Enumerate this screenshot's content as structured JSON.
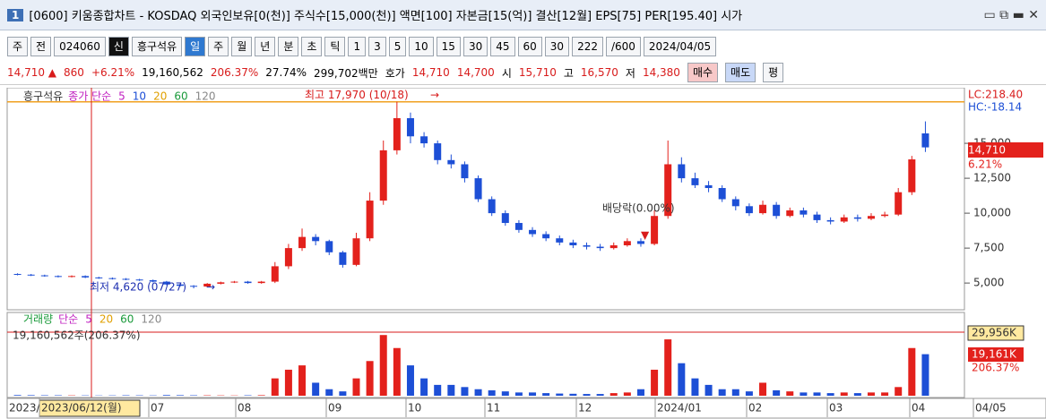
{
  "title_bar": {
    "badge": "1",
    "text": "[0600] 키움종합차트 - KOSDAQ 외국인보유[0(천)] 주식수[15,000(천)] 액면[100] 자본금[15(억)] 결산[12월] EPS[75] PER[195.40] 시가"
  },
  "toolbar": [
    "주",
    "전",
    "024060",
    "신",
    "흥구석유",
    "일",
    "주",
    "월",
    "년",
    "분",
    "초",
    "틱",
    "1",
    "3",
    "5",
    "10",
    "15",
    "30",
    "45",
    "60",
    "30",
    "222",
    "/600",
    "2024/04/05"
  ],
  "quote": [
    "14,710 ▲",
    "860",
    "+6.21%",
    "19,160,562",
    "206.37%",
    "27.74%",
    "299,702백만",
    "호가",
    "14,710",
    "14,700",
    "시",
    "15,710",
    "고",
    "16,570",
    "저",
    "14,380",
    "매수",
    "매도",
    "평"
  ],
  "x_labels": [
    "2023/",
    "2023/06/12(월)",
    "07",
    "08",
    "09",
    "10",
    "11",
    "12",
    "2024/01",
    "02",
    "03",
    "04",
    "04/05"
  ],
  "chart_data": [
    {
      "type": "candlestick",
      "up_color": "#e3211c",
      "down_color": "#1d4fd6",
      "legend": [
        "흥구석유",
        "종가 단순",
        "5",
        "10",
        "20",
        "60",
        "120"
      ],
      "open": [
        5650,
        5600,
        5550,
        5500,
        5450,
        5500,
        5400,
        5350,
        5300,
        5250,
        5200,
        5100,
        4900,
        4800,
        4750,
        4950,
        5050,
        5100,
        5000,
        5100,
        6200,
        7500,
        8300,
        8000,
        7200,
        6300,
        8200,
        10900,
        14500,
        16800,
        15500,
        15000,
        13800,
        13500,
        12500,
        11000,
        10000,
        9300,
        8800,
        8500,
        8200,
        7900,
        7700,
        7600,
        7500,
        7700,
        8000,
        7800,
        9800,
        13500,
        12500,
        12000,
        11800,
        11000,
        10500,
        10000,
        10600,
        9800,
        10200,
        9900,
        9500,
        9400,
        9700,
        9600,
        9800,
        9900,
        11500,
        15710
      ],
      "high": [
        5700,
        5650,
        5600,
        5550,
        5550,
        5550,
        5450,
        5400,
        5350,
        5300,
        5250,
        5150,
        4950,
        4850,
        5000,
        5100,
        5150,
        5150,
        5150,
        6500,
        7800,
        8900,
        8500,
        8100,
        7300,
        8600,
        11500,
        15200,
        17970,
        17200,
        15800,
        15200,
        14200,
        13700,
        12700,
        11200,
        10200,
        9500,
        9000,
        8700,
        8400,
        8100,
        7900,
        7800,
        7900,
        8200,
        8200,
        10200,
        15200,
        14000,
        12900,
        12300,
        12000,
        11200,
        10700,
        10900,
        10800,
        10400,
        10400,
        10100,
        9700,
        9900,
        9900,
        10000,
        10100,
        11800,
        14100,
        16570
      ],
      "low": [
        5550,
        5500,
        5450,
        5400,
        5400,
        5350,
        5300,
        5250,
        5200,
        5150,
        5050,
        4850,
        4750,
        4620,
        4700,
        4900,
        5000,
        4950,
        4950,
        5000,
        6000,
        7300,
        7700,
        7000,
        6100,
        6200,
        8000,
        10600,
        14200,
        15000,
        14700,
        13500,
        13200,
        12200,
        10800,
        9800,
        9100,
        8600,
        8300,
        8000,
        7700,
        7500,
        7400,
        7300,
        7400,
        7600,
        7600,
        7700,
        9600,
        12200,
        11800,
        11500,
        10800,
        10200,
        9800,
        9900,
        9600,
        9700,
        9700,
        9300,
        9200,
        9300,
        9400,
        9500,
        9700,
        9800,
        11300,
        14380
      ],
      "close": [
        5600,
        5550,
        5500,
        5450,
        5500,
        5400,
        5350,
        5300,
        5250,
        5200,
        5100,
        4900,
        4800,
        4750,
        4950,
        5050,
        5100,
        5000,
        5100,
        6200,
        7500,
        8300,
        8000,
        7200,
        6300,
        8200,
        10900,
        14500,
        16800,
        15500,
        15000,
        13800,
        13500,
        12500,
        11000,
        10000,
        9300,
        8800,
        8500,
        8200,
        7900,
        7700,
        7600,
        7500,
        7700,
        8000,
        7800,
        9800,
        13500,
        12500,
        12000,
        11800,
        11000,
        10500,
        10000,
        10600,
        9800,
        10200,
        9900,
        9500,
        9400,
        9700,
        9600,
        9800,
        9900,
        11500,
        13850,
        14710
      ],
      "ylim": [
        3150,
        18850
      ],
      "yticks": [
        {
          "value": 5000,
          "label": "5,000"
        },
        {
          "value": 7500,
          "label": "7,500"
        },
        {
          "value": 10000,
          "label": "10,000"
        },
        {
          "value": 12500,
          "label": "12,500"
        },
        {
          "value": 15000,
          "label": "15,000"
        }
      ],
      "high_line": {
        "value": 17970,
        "label": "최고 17,970 (10/18)"
      },
      "low_note": "최저 4,620 (07/27)",
      "dividend_note": "배당락(0.00%)",
      "right_labels": [
        "LC:218.40",
        "HC:-18.14",
        "14,710",
        "6.21%"
      ]
    },
    {
      "type": "bar",
      "legend": [
        "거래량",
        "단순",
        "5",
        "20",
        "60",
        "120"
      ],
      "note": "19,160,562주(206.37%)",
      "values": [
        300,
        250,
        200,
        200,
        150,
        150,
        120,
        150,
        200,
        180,
        150,
        300,
        250,
        200,
        180,
        150,
        120,
        200,
        250,
        8000,
        12000,
        14000,
        6000,
        3000,
        2000,
        8000,
        16000,
        28000,
        22000,
        14000,
        8000,
        5000,
        5000,
        4000,
        3000,
        2500,
        2000,
        1500,
        1500,
        1200,
        1000,
        900,
        800,
        800,
        1200,
        1500,
        3000,
        12000,
        26000,
        15000,
        8000,
        5000,
        3000,
        3000,
        2000,
        6000,
        2500,
        2000,
        1500,
        1500,
        1200,
        1500,
        1200,
        1500,
        1500,
        4000,
        22000,
        19161
      ],
      "ylim": [
        0,
        38000
      ],
      "right_labels": [
        "29,956K",
        "19,161K",
        "206.37%"
      ]
    }
  ]
}
